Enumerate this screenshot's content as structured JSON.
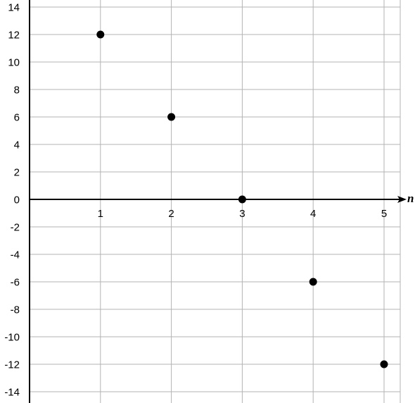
{
  "chart_data": {
    "type": "scatter",
    "xlabel": "n",
    "ylabel": "",
    "xlim": [
      0,
      5.3
    ],
    "ylim": [
      -14,
      14
    ],
    "x_ticks": [
      1,
      2,
      3,
      4,
      5
    ],
    "y_ticks": [
      14,
      12,
      10,
      8,
      6,
      4,
      2,
      0,
      -2,
      -4,
      -6,
      -8,
      -10,
      -12,
      -14
    ],
    "grid": true,
    "series": [
      {
        "x": [
          1,
          2,
          3,
          4,
          5
        ],
        "y": [
          12,
          6,
          0,
          -6,
          -12
        ],
        "color": "#000000"
      }
    ]
  }
}
